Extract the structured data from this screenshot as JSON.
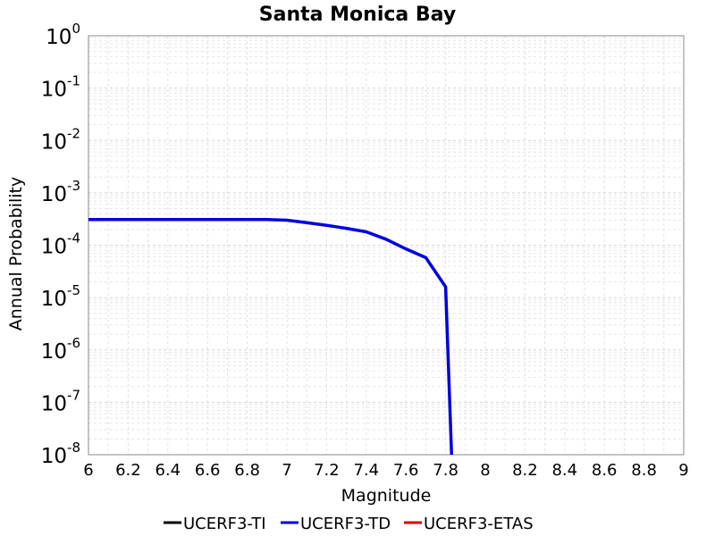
{
  "chart_data": {
    "type": "line",
    "title": "Santa Monica Bay",
    "xlabel": "Magnitude",
    "ylabel": "Annual Probability",
    "xlim": [
      6,
      9
    ],
    "ylim": [
      1e-08,
      1
    ],
    "yscale": "log",
    "xticks": [
      "6",
      "6.2",
      "6.4",
      "6.6",
      "6.8",
      "7",
      "7.2",
      "7.4",
      "7.6",
      "7.8",
      "8",
      "8.2",
      "8.4",
      "8.6",
      "8.8",
      "9"
    ],
    "yticks": [
      {
        "base": "10",
        "exp": "0"
      },
      {
        "base": "10",
        "exp": "-1"
      },
      {
        "base": "10",
        "exp": "-2"
      },
      {
        "base": "10",
        "exp": "-3"
      },
      {
        "base": "10",
        "exp": "-4"
      },
      {
        "base": "10",
        "exp": "-5"
      },
      {
        "base": "10",
        "exp": "-6"
      },
      {
        "base": "10",
        "exp": "-7"
      },
      {
        "base": "10",
        "exp": "-8"
      }
    ],
    "grid": true,
    "legend_position": "bottom",
    "series": [
      {
        "name": "UCERF3-TI",
        "color": "#000000",
        "x": [],
        "y": []
      },
      {
        "name": "UCERF3-TD",
        "color": "#0000dd",
        "x": [
          6.0,
          6.1,
          6.2,
          6.3,
          6.4,
          6.5,
          6.6,
          6.7,
          6.8,
          6.9,
          7.0,
          7.1,
          7.2,
          7.3,
          7.4,
          7.5,
          7.6,
          7.7,
          7.8,
          7.83
        ],
        "y": [
          0.00031,
          0.00031,
          0.00031,
          0.00031,
          0.00031,
          0.00031,
          0.00031,
          0.00031,
          0.00031,
          0.00031,
          0.0003,
          0.00027,
          0.00024,
          0.00021,
          0.00018,
          0.00013,
          8.5e-05,
          5.8e-05,
          1.6e-05,
          1e-08
        ]
      },
      {
        "name": "UCERF3-ETAS",
        "color": "#dd0000",
        "x": [],
        "y": []
      }
    ]
  }
}
